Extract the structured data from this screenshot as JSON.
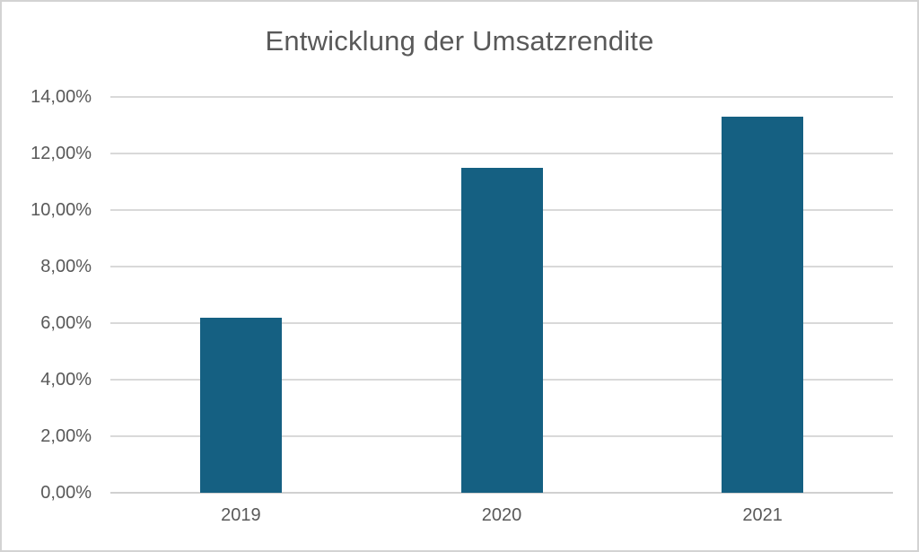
{
  "chart_data": {
    "type": "bar",
    "title": "Entwicklung der Umsatzrendite",
    "categories": [
      "2019",
      "2020",
      "2021"
    ],
    "values": [
      6.2,
      11.5,
      13.3
    ],
    "value_unit": "%",
    "xlabel": "",
    "ylabel": "",
    "ylim": [
      0,
      14
    ],
    "ytick_step": 2,
    "yticks": [
      {
        "value": 0,
        "label": "0,00%"
      },
      {
        "value": 2,
        "label": "2,00%"
      },
      {
        "value": 4,
        "label": "4,00%"
      },
      {
        "value": 6,
        "label": "6,00%"
      },
      {
        "value": 8,
        "label": "8,00%"
      },
      {
        "value": 10,
        "label": "10,00%"
      },
      {
        "value": 12,
        "label": "12,00%"
      },
      {
        "value": 14,
        "label": "14,00%"
      }
    ],
    "grid": true,
    "legend": "none",
    "colors": {
      "bar": "#156082",
      "gridline": "#d9d9d9",
      "axis_line": "#d0d0d0",
      "text": "#595959",
      "frame_border": "#d3d3d3",
      "background": "#ffffff"
    }
  }
}
